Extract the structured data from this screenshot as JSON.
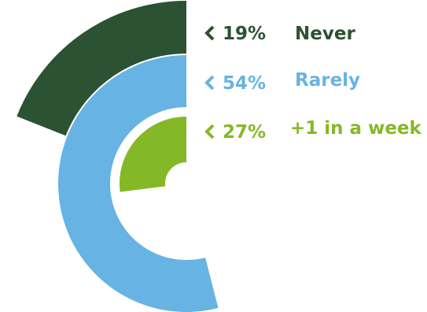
{
  "chart_data": {
    "type": "radial-bar",
    "title": "",
    "series": [
      {
        "label": "Never",
        "percent_label": "19%",
        "value": 19,
        "color": "#2b5232"
      },
      {
        "label": "Rarely",
        "percent_label": "54%",
        "value": 54,
        "color": "#67b3e3"
      },
      {
        "label": "+1 in a week",
        "percent_label": "27%",
        "value": 27,
        "color": "#85b827"
      }
    ],
    "legend_position": "right",
    "grid": false
  }
}
